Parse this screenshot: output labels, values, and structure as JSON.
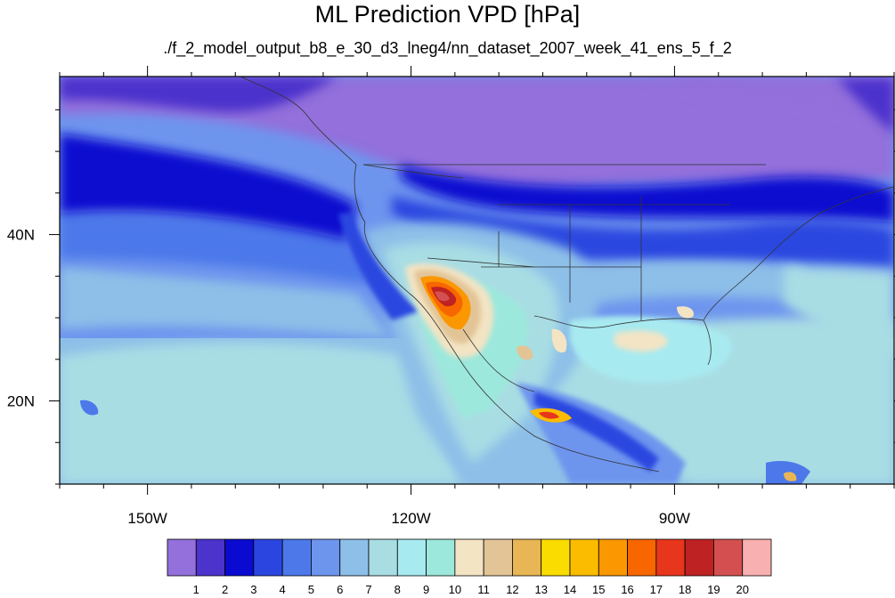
{
  "title": "ML Prediction VPD [hPa]",
  "subtitle": "./f_2_model_output_b8_e_30_d3_lneg4/nn_dataset_2007_week_41_ens_5_f_2",
  "map": {
    "lon_range": [
      -160,
      -65
    ],
    "lat_range": [
      10,
      59
    ],
    "lon_ticks": [
      {
        "lon": -150,
        "label": "150W"
      },
      {
        "lon": -120,
        "label": "120W"
      },
      {
        "lon": -90,
        "label": "90W"
      }
    ],
    "lat_ticks": [
      {
        "lat": 40,
        "label": "40N"
      },
      {
        "lat": 20,
        "label": "20N"
      }
    ]
  },
  "colorbar": {
    "levels": [
      "1",
      "2",
      "3",
      "4",
      "5",
      "6",
      "7",
      "8",
      "9",
      "10",
      "11",
      "12",
      "13",
      "14",
      "15",
      "16",
      "17",
      "18",
      "19",
      "20"
    ],
    "colors": [
      "#9370db",
      "#4b33cc",
      "#0a0ad0",
      "#2b46e0",
      "#4c78ea",
      "#6e95ee",
      "#8dbfe8",
      "#a9dde4",
      "#a7eaf0",
      "#9ce8dc",
      "#f3e4c4",
      "#e2c496",
      "#e8b655",
      "#fbdc00",
      "#fbbc00",
      "#fb9700",
      "#f86600",
      "#e8361c",
      "#be2222",
      "#d45050",
      "#f9b0b0"
    ]
  }
}
